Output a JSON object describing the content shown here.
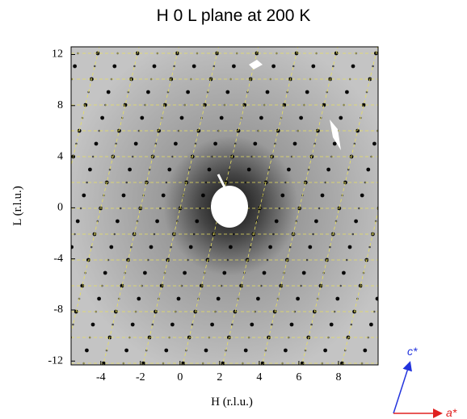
{
  "chart_data": {
    "type": "image",
    "title": "H 0 L plane at 200 K",
    "x_label": "H (r.l.u.)",
    "y_label": "L (r.l.u.)",
    "xlim": [
      -5.5,
      10
    ],
    "ylim": [
      -12.3,
      12.6
    ],
    "xticks": [
      -4,
      -2,
      0,
      2,
      4,
      6,
      8
    ],
    "yticks": [
      -12,
      -8,
      -4,
      0,
      4,
      8,
      12
    ],
    "axes_labels": {
      "c": "c*",
      "a": "a*"
    }
  }
}
